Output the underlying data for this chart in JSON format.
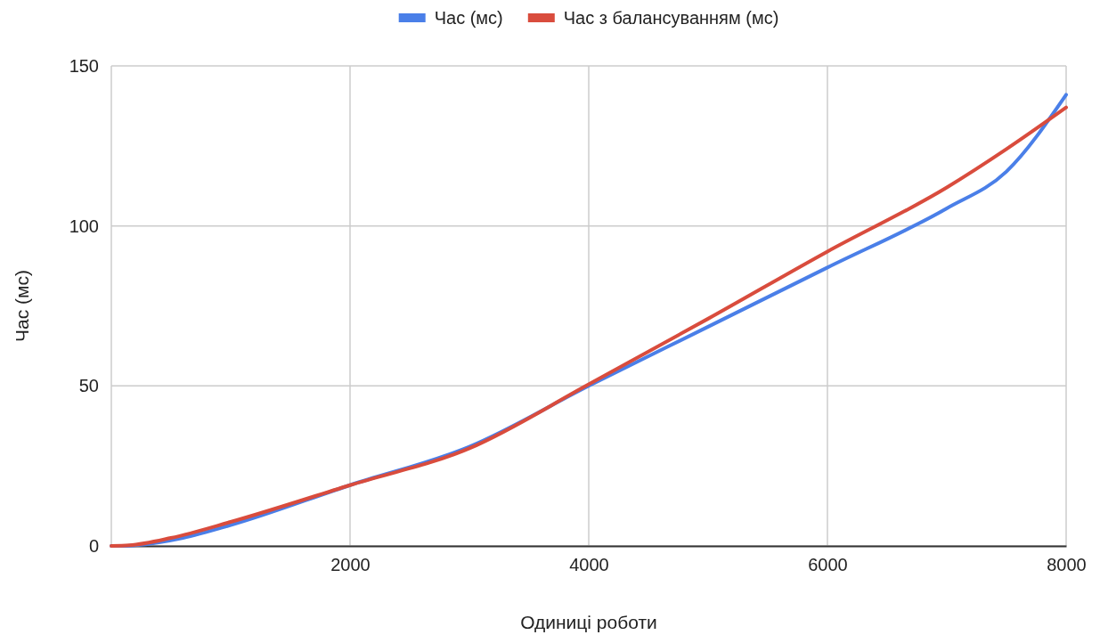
{
  "chart_data": {
    "type": "line",
    "xlabel": "Одиниці роботи",
    "ylabel": "Час (мс)",
    "xlim": [
      0,
      8000
    ],
    "xticks": [
      {
        "value": 0,
        "label": null
      },
      2000,
      4000,
      6000,
      8000
    ],
    "ylim": [
      0,
      150
    ],
    "yticks": [
      0,
      50,
      100,
      150
    ],
    "grid": true,
    "legend": "top",
    "line_style": "solid",
    "marker": "none",
    "series": [
      {
        "name": "Час (мс)",
        "color": "#4a7fe8",
        "x": [
          0,
          100,
          200,
          600,
          1000,
          2000,
          3000,
          4000,
          5000,
          6000,
          7000,
          7500,
          8000
        ],
        "values": [
          0,
          0,
          0.2,
          2.5,
          6.5,
          19,
          31,
          50,
          68.5,
          87,
          105.5,
          117,
          141
        ]
      },
      {
        "name": "Час з балансуванням (мс)",
        "color": "#d94c3d",
        "x": [
          0,
          150,
          500,
          1000,
          2000,
          3000,
          4000,
          5000,
          6000,
          7000,
          7500,
          8000
        ],
        "values": [
          0,
          0.2,
          2.5,
          7.5,
          19,
          30.5,
          50.5,
          71,
          92,
          112,
          124,
          137
        ]
      }
    ]
  }
}
